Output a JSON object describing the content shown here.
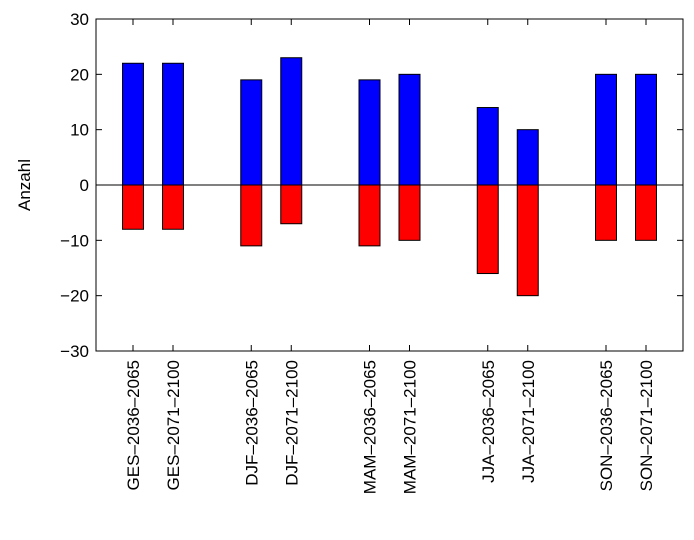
{
  "chart_data": {
    "type": "bar",
    "title": "",
    "xlabel": "",
    "ylabel": "Anzahl",
    "ylim": [
      -30,
      30
    ],
    "yticks": [
      -30,
      -20,
      -10,
      0,
      10,
      20,
      30
    ],
    "grid": false,
    "categories": [
      "GES–2036–2065",
      "GES–2071–2100",
      "DJF–2036–2065",
      "DJF–2071–2100",
      "MAM–2036–2065",
      "MAM–2071–2100",
      "JJA–2036–2065",
      "JJA–2071–2100",
      "SON–2036–2065",
      "SON–2071–2100"
    ],
    "series": [
      {
        "color": "#0000ff",
        "values": [
          22,
          22,
          19,
          23,
          19,
          20,
          14,
          10,
          20,
          20
        ]
      },
      {
        "color": "#ff0000",
        "values": [
          -8,
          -8,
          -11,
          -7,
          -11,
          -10,
          -16,
          -20,
          -10,
          -10
        ]
      }
    ]
  }
}
